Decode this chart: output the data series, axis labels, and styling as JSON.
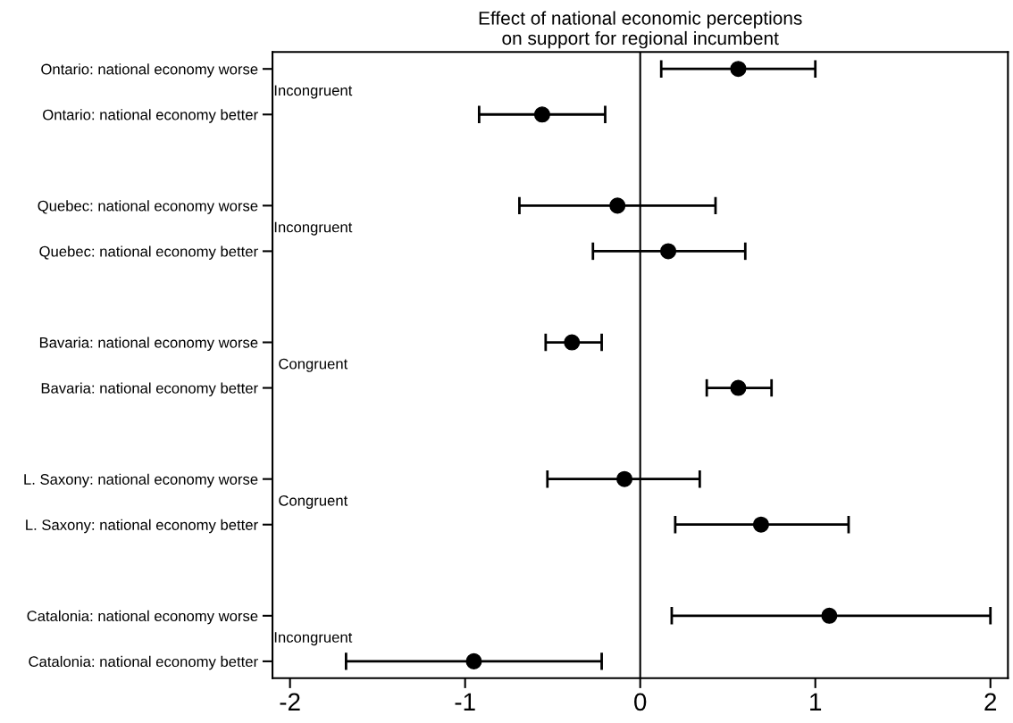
{
  "chart_data": {
    "type": "scatter",
    "title": "Effect of national economic perceptions\non support for regional incumbent",
    "categories": [
      "Ontario: national economy worse",
      "Ontario: national economy better",
      null,
      "Quebec: national economy worse",
      "Quebec: national economy better",
      null,
      "Bavaria: national economy worse",
      "Bavaria: national economy better",
      null,
      "L. Saxony: national economy worse",
      "L. Saxony: national economy better",
      null,
      "Catalonia: national economy worse",
      "Catalonia: national economy better"
    ],
    "orientation": "horizontal",
    "values": [
      0.56,
      -0.56,
      null,
      -0.13,
      0.16,
      null,
      -0.39,
      0.56,
      null,
      -0.09,
      0.69,
      null,
      1.08,
      -0.95
    ],
    "errors": [
      [
        0.12,
        1.0
      ],
      [
        -0.92,
        -0.2
      ],
      null,
      [
        -0.69,
        0.43
      ],
      [
        -0.27,
        0.6
      ],
      null,
      [
        -0.54,
        -0.22
      ],
      [
        0.38,
        0.75
      ],
      null,
      [
        -0.53,
        0.34
      ],
      [
        0.2,
        1.19
      ],
      null,
      [
        0.18,
        2.0
      ],
      [
        -1.68,
        -0.22
      ]
    ],
    "color": "#000000",
    "marker": "circle",
    "xlim": [
      -2.1,
      2.1
    ],
    "xticks": [
      -2,
      -1,
      0,
      1,
      2
    ],
    "ref_lines": [
      {
        "axis": "x",
        "value": 0,
        "color": "#000000"
      }
    ],
    "annotations": [
      "Incongruent",
      "Incongruent",
      "Congruent",
      "Congruent",
      "Incongruent"
    ],
    "grid": false,
    "legend": false
  }
}
